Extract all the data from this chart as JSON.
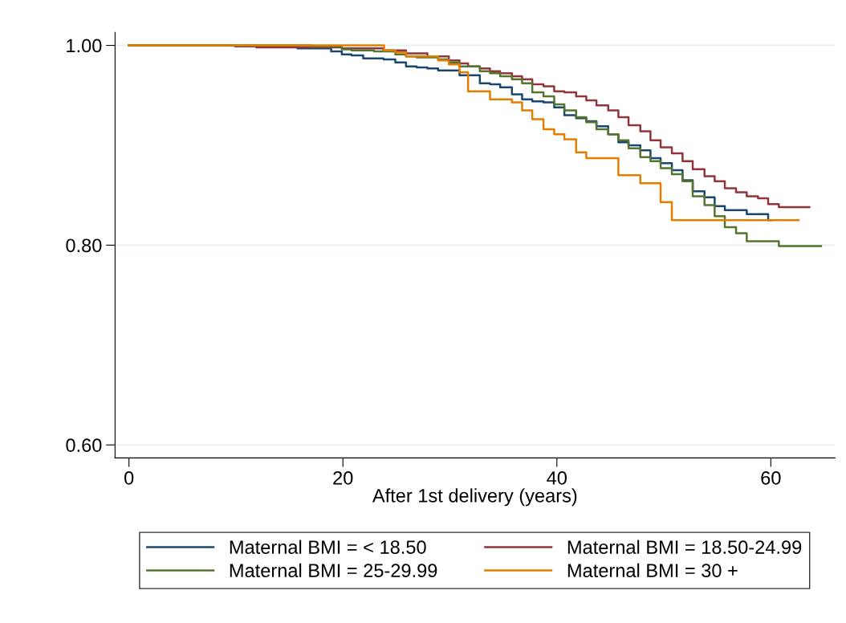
{
  "chart_data": {
    "type": "step",
    "xlabel": "After 1st delivery (years)",
    "xlim": [
      -1.3,
      66
    ],
    "xticks": [
      0,
      20,
      40,
      60
    ],
    "ylim": [
      0.587,
      1.013
    ],
    "yticks": [
      {
        "value": 0.6,
        "label": "0.60"
      },
      {
        "value": 0.8,
        "label": "0.80"
      },
      {
        "value": 1.0,
        "label": "1.00"
      }
    ],
    "grid": "y",
    "legend": "bottom",
    "series": [
      {
        "name": "Maternal BMI = < 18.50",
        "color": "#1a476f",
        "x": [
          0,
          15.75,
          18.9,
          19.9,
          20.8,
          21.9,
          23.8,
          24.9,
          25.9,
          26.9,
          27.9,
          28.9,
          30.9,
          32.8,
          33.75,
          34.7,
          35.8,
          36.75,
          37.7,
          38.75,
          39.75,
          40.7,
          41.8,
          42.75,
          43.7,
          44.8,
          45.75,
          46.7,
          47.8,
          48.75,
          49.7,
          50.75,
          51.75,
          52.7,
          53.8,
          54.75,
          55.7,
          57.75,
          59.75,
          60
        ],
        "values": [
          1.0,
          0.997,
          0.994,
          0.991,
          0.99,
          0.987,
          0.986,
          0.983,
          0.979,
          0.978,
          0.977,
          0.975,
          0.97,
          0.962,
          0.961,
          0.958,
          0.951,
          0.946,
          0.944,
          0.943,
          0.938,
          0.93,
          0.927,
          0.924,
          0.919,
          0.911,
          0.903,
          0.9,
          0.895,
          0.887,
          0.882,
          0.875,
          0.865,
          0.854,
          0.848,
          0.839,
          0.835,
          0.831,
          0.825,
          0.825
        ]
      },
      {
        "name": "Maternal BMI = 18.50-24.99",
        "color": "#90353b",
        "x": [
          0,
          9.9,
          11.9,
          19.9,
          23.8,
          25.9,
          27.9,
          29.9,
          30.9,
          31.7,
          32.8,
          33.75,
          34.7,
          35.8,
          36.75,
          37.7,
          38.75,
          39.75,
          40.7,
          41.8,
          42.75,
          43.7,
          44.8,
          45.75,
          46.7,
          47.8,
          48.75,
          49.7,
          50.75,
          51.75,
          52.7,
          53.8,
          54.75,
          55.7,
          56.75,
          57.75,
          58.8,
          59.75,
          60.75,
          63.6
        ],
        "values": [
          1.0,
          0.999,
          0.998,
          0.997,
          0.995,
          0.992,
          0.989,
          0.985,
          0.982,
          0.979,
          0.977,
          0.974,
          0.972,
          0.969,
          0.966,
          0.961,
          0.959,
          0.954,
          0.953,
          0.949,
          0.945,
          0.94,
          0.935,
          0.928,
          0.92,
          0.914,
          0.905,
          0.898,
          0.892,
          0.884,
          0.876,
          0.869,
          0.864,
          0.857,
          0.853,
          0.849,
          0.847,
          0.841,
          0.838,
          0.838
        ]
      },
      {
        "name": "Maternal BMI = 25-29.99",
        "color": "#55752f",
        "x": [
          0,
          17,
          19.9,
          20.8,
          22.9,
          24.9,
          25.9,
          26.9,
          28.9,
          29.9,
          30.9,
          32.8,
          33.75,
          34.7,
          35.8,
          36.75,
          37.7,
          38.75,
          39.75,
          40.7,
          41.8,
          42.75,
          43.7,
          44.8,
          45.75,
          46.7,
          47.8,
          48.75,
          49.7,
          50.75,
          51.75,
          52.7,
          53.8,
          54.75,
          55.7,
          56.75,
          57.75,
          60.75,
          64.7
        ],
        "values": [
          1.0,
          0.999,
          0.996,
          0.995,
          0.994,
          0.991,
          0.989,
          0.988,
          0.986,
          0.983,
          0.979,
          0.974,
          0.972,
          0.969,
          0.966,
          0.962,
          0.953,
          0.949,
          0.941,
          0.935,
          0.928,
          0.923,
          0.916,
          0.911,
          0.905,
          0.897,
          0.888,
          0.884,
          0.877,
          0.871,
          0.864,
          0.849,
          0.84,
          0.829,
          0.818,
          0.812,
          0.804,
          0.799,
          0.799
        ]
      },
      {
        "name": "Maternal BMI = 30 +",
        "color": "#e37e00",
        "x": [
          0,
          23.85,
          24.9,
          25.9,
          28.9,
          29.9,
          30.9,
          31.7,
          33.75,
          35.8,
          36.75,
          37.7,
          38.75,
          39.75,
          40.7,
          41.8,
          42.75,
          45.75,
          47.8,
          49.7,
          50.75,
          62.6
        ],
        "values": [
          1.0,
          0.995,
          0.993,
          0.989,
          0.985,
          0.981,
          0.973,
          0.954,
          0.946,
          0.943,
          0.935,
          0.926,
          0.916,
          0.911,
          0.906,
          0.893,
          0.887,
          0.87,
          0.862,
          0.843,
          0.825,
          0.825
        ]
      }
    ]
  }
}
